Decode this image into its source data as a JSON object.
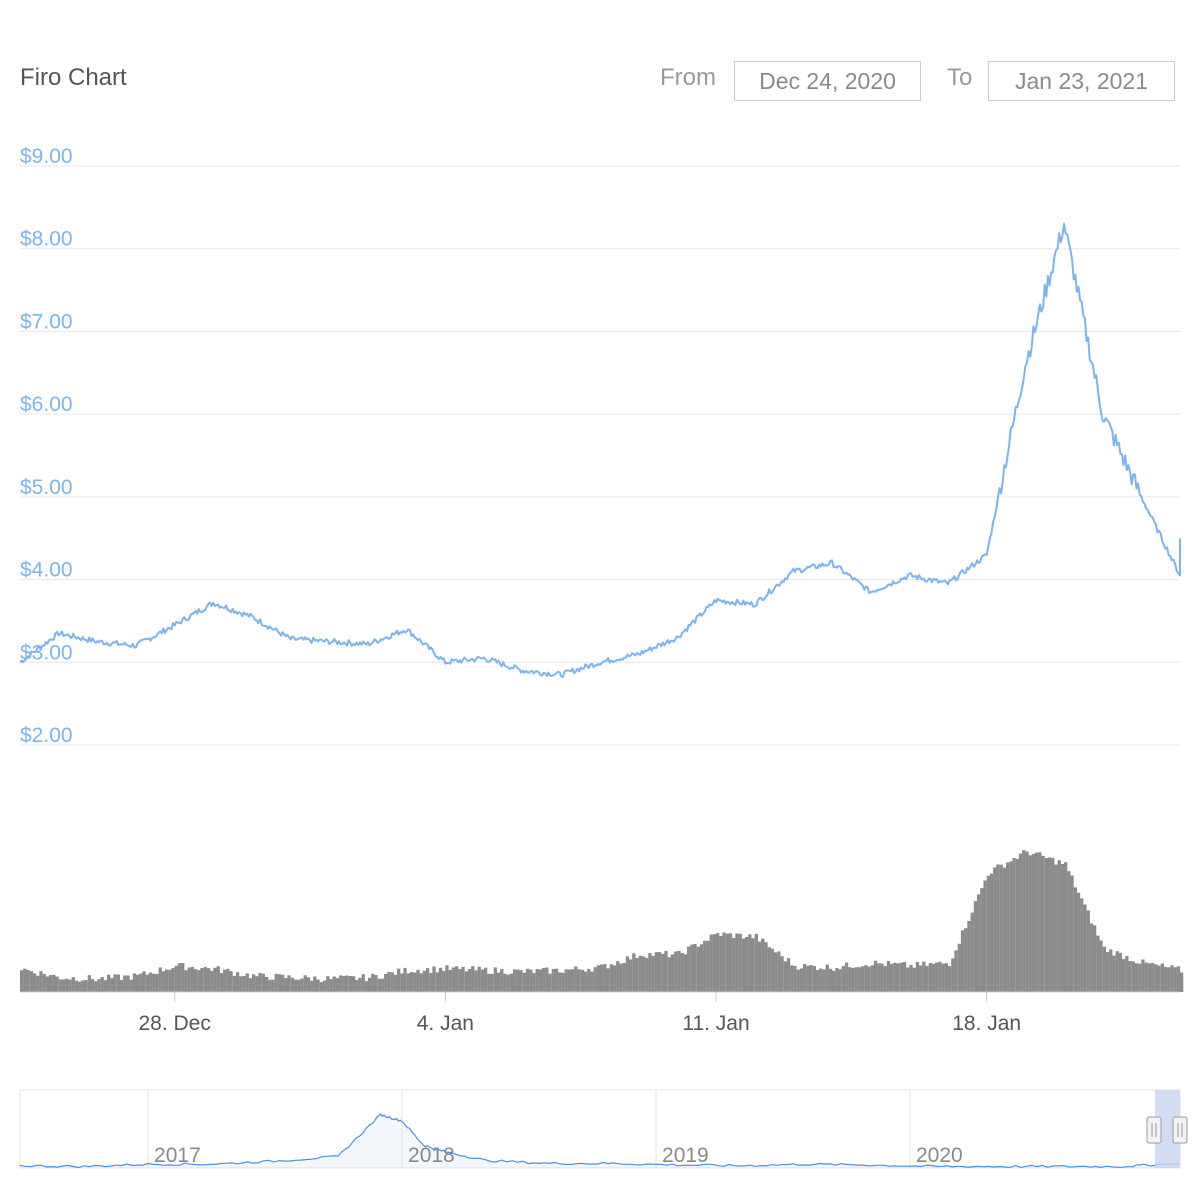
{
  "header": {
    "title": "Firo Chart",
    "from_label": "From",
    "from_value": "Dec 24, 2020",
    "to_label": "To",
    "to_value": "Jan 23, 2021"
  },
  "colors": {
    "price_line": "#7cb5ec",
    "volume_bars": "#8c8c8c",
    "grid": "#e6e6e6",
    "navigator_line": "#4a90e2",
    "navigator_mask": "#c8d4ef"
  },
  "chart_data": [
    {
      "type": "line",
      "title": "",
      "xlabel": "",
      "ylabel": "",
      "ylim": [
        2,
        9
      ],
      "yticks": [
        "$9.00",
        "$8.00",
        "$7.00",
        "$6.00",
        "$5.00",
        "$4.00",
        "$3.00",
        "$2.00"
      ],
      "grid": true,
      "x_range": [
        "2020-12-24",
        "2021-01-23"
      ],
      "series": [
        {
          "x": [
            "2020-12-24",
            "2020-12-25",
            "2020-12-26",
            "2020-12-27",
            "2020-12-28",
            "2020-12-29",
            "2020-12-30",
            "2020-12-31",
            "2021-01-01",
            "2021-01-02",
            "2021-01-03",
            "2021-01-04",
            "2021-01-05",
            "2021-01-06",
            "2021-01-07",
            "2021-01-08",
            "2021-01-09",
            "2021-01-10",
            "2021-01-11",
            "2021-01-12",
            "2021-01-13",
            "2021-01-14",
            "2021-01-15",
            "2021-01-16",
            "2021-01-17",
            "2021-01-18",
            "2021-01-19",
            "2021-01-20",
            "2021-01-21",
            "2021-01-22",
            "2021-01-23"
          ],
          "values": [
            3.0,
            3.35,
            3.25,
            3.2,
            3.45,
            3.72,
            3.55,
            3.28,
            3.25,
            3.22,
            3.4,
            3.0,
            3.05,
            2.9,
            2.85,
            3.0,
            3.1,
            3.3,
            3.75,
            3.7,
            4.1,
            4.2,
            3.85,
            4.05,
            3.95,
            4.3,
            6.6,
            8.3,
            6.0,
            5.0,
            4.05
          ]
        }
      ]
    },
    {
      "type": "bar",
      "title": "",
      "x": [
        "2020-12-24",
        "2020-12-25",
        "2020-12-26",
        "2020-12-27",
        "2020-12-28",
        "2020-12-29",
        "2020-12-30",
        "2020-12-31",
        "2021-01-01",
        "2021-01-02",
        "2021-01-03",
        "2021-01-04",
        "2021-01-05",
        "2021-01-06",
        "2021-01-07",
        "2021-01-08",
        "2021-01-09",
        "2021-01-10",
        "2021-01-11",
        "2021-01-12",
        "2021-01-13",
        "2021-01-14",
        "2021-01-15",
        "2021-01-16",
        "2021-01-17",
        "2021-01-18",
        "2021-01-19",
        "2021-01-20",
        "2021-01-21",
        "2021-01-22",
        "2021-01-23"
      ],
      "values": [
        0.16,
        0.1,
        0.09,
        0.11,
        0.18,
        0.16,
        0.11,
        0.1,
        0.09,
        0.1,
        0.15,
        0.16,
        0.15,
        0.14,
        0.15,
        0.17,
        0.26,
        0.26,
        0.4,
        0.38,
        0.18,
        0.17,
        0.2,
        0.18,
        0.2,
        0.82,
        0.97,
        0.88,
        0.3,
        0.2,
        0.15
      ],
      "xticks": [
        "28. Dec",
        "4. Jan",
        "11. Jan",
        "18. Jan"
      ],
      "xtick_dates": [
        "2020-12-28",
        "2021-01-04",
        "2021-01-11",
        "2021-01-18"
      ]
    },
    {
      "type": "area",
      "title": "",
      "xticks": [
        "2017",
        "2018",
        "2019",
        "2020"
      ],
      "x": [
        "2016-07",
        "2016-10",
        "2017-01",
        "2017-04",
        "2017-07",
        "2017-10",
        "2017-12",
        "2018-01",
        "2018-02",
        "2018-03",
        "2018-05",
        "2018-08",
        "2018-11",
        "2019-02",
        "2019-05",
        "2019-08",
        "2019-11",
        "2020-02",
        "2020-05",
        "2020-08",
        "2020-11",
        "2021-01"
      ],
      "values": [
        0.03,
        0.02,
        0.05,
        0.05,
        0.09,
        0.15,
        0.7,
        0.62,
        0.3,
        0.22,
        0.1,
        0.06,
        0.06,
        0.04,
        0.03,
        0.05,
        0.04,
        0.02,
        0.02,
        0.02,
        0.02,
        0.05
      ],
      "selection": [
        "2020-12-24",
        "2021-01-23"
      ]
    }
  ]
}
